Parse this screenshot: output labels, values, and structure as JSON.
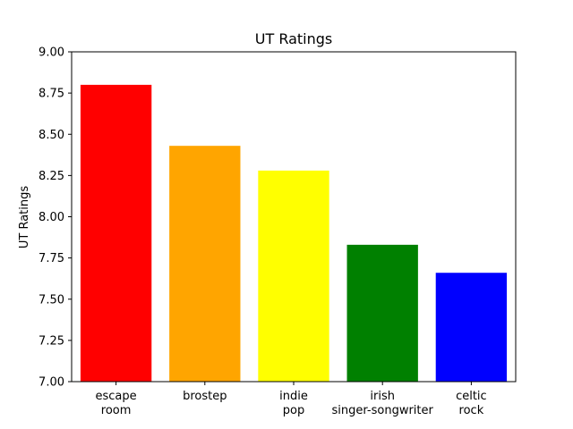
{
  "chart_data": {
    "type": "bar",
    "title": "UT Ratings",
    "xlabel": "",
    "ylabel": "UT Ratings",
    "ylim": [
      7.0,
      9.0
    ],
    "yticks": [
      "7.00",
      "7.25",
      "7.50",
      "7.75",
      "8.00",
      "8.25",
      "8.50",
      "8.75",
      "9.00"
    ],
    "grid": false,
    "categories": [
      [
        "escape",
        "room"
      ],
      [
        "brostep"
      ],
      [
        "indie",
        "pop"
      ],
      [
        "irish",
        "singer-songwriter"
      ],
      [
        "celtic",
        "rock"
      ]
    ],
    "values": [
      8.8,
      8.43,
      8.28,
      7.83,
      7.66
    ],
    "colors": [
      "#ff0000",
      "#ffa500",
      "#ffff00",
      "#008000",
      "#0000ff"
    ]
  }
}
